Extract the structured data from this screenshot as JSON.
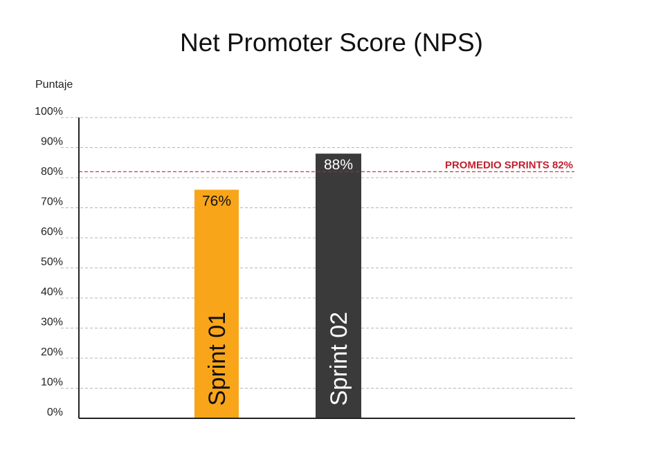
{
  "chart_data": {
    "type": "bar",
    "title": "Net Promoter Score (NPS)",
    "ylabel": "Puntaje",
    "xlabel": "",
    "ylim": [
      0,
      100
    ],
    "yticks": [
      0,
      10,
      20,
      30,
      40,
      50,
      60,
      70,
      80,
      90,
      100
    ],
    "ytick_suffix": "%",
    "grid": true,
    "categories": [
      "Sprint 01",
      "Sprint 02"
    ],
    "values": [
      76,
      88
    ],
    "value_labels": [
      "76%",
      "88%"
    ],
    "colors": [
      "#F9A51A",
      "#3A3A3A"
    ],
    "label_colors": [
      "#111111",
      "#ffffff"
    ],
    "reference_line": {
      "label": "PROMEDIO SPRINTS 82%",
      "value": 82,
      "color": "#C0202E"
    }
  }
}
